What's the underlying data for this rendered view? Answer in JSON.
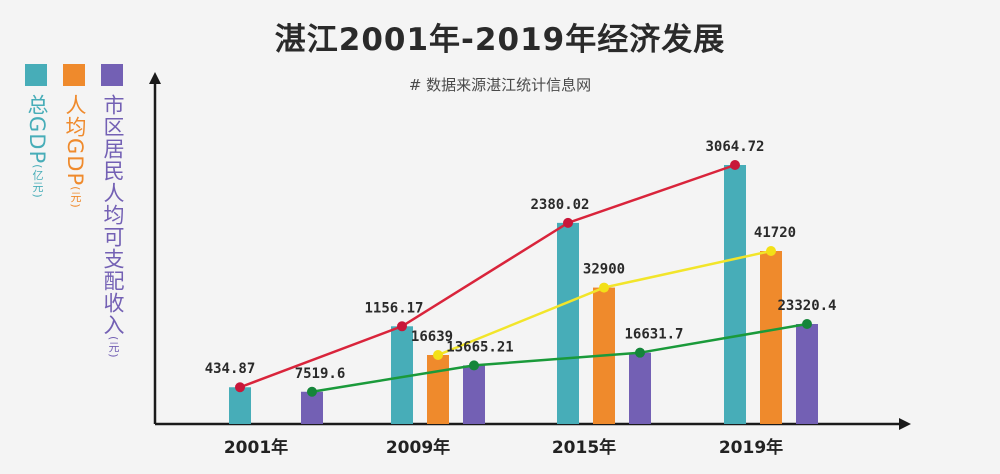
{
  "title": "湛江2001年-2019年经济发展",
  "subtitle": "# 数据来源湛江统计信息网",
  "legend": [
    {
      "label": "总GDP",
      "unit": "(亿元)",
      "color": "#47adb8"
    },
    {
      "label": "人均GDP",
      "unit": "(元)",
      "color": "#ef8a2c"
    },
    {
      "label": "市区居民人均可支配收入",
      "unit": "(元)",
      "color": "#7360b4"
    }
  ],
  "chart_data": {
    "type": "bar",
    "title": "湛江2001年-2019年经济发展",
    "categories": [
      "2001年",
      "2009年",
      "2015年",
      "2019年"
    ],
    "series": [
      {
        "name": "总GDP (亿元)",
        "values": [
          434.87,
          1156.17,
          2380.02,
          3064.72
        ],
        "labels": [
          "434.87",
          "1156.17",
          "2380.02",
          "3064.72"
        ],
        "color": "#47adb8",
        "line_color": "#d9243b",
        "dot_color": "#c8173a"
      },
      {
        "name": "人均GDP (元)",
        "values": [
          null,
          16639,
          32900,
          41720
        ],
        "labels": [
          "",
          "16639",
          "32900",
          "41720"
        ],
        "color": "#ef8a2c",
        "line_color": "#f2e52a",
        "dot_color": "#f3e017"
      },
      {
        "name": "市区居民人均可支配收入 (元)",
        "values": [
          7519.6,
          13665.21,
          16631.7,
          23320.4
        ],
        "labels": [
          "7519.6",
          "13665.21",
          "16631.7",
          "23320.4"
        ],
        "color": "#7360b4",
        "line_color": "#1a9a3a",
        "dot_color": "#15853a"
      }
    ],
    "xlabel": "",
    "ylabel": ""
  }
}
